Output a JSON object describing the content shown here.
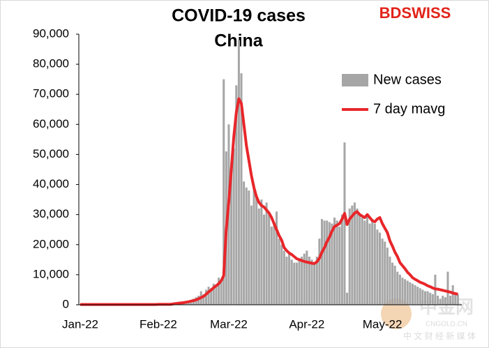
{
  "chart_data": {
    "type": "bar",
    "title": "COVID-19 cases",
    "subtitle": "China",
    "logo": "BDSWISS",
    "watermark": {
      "name": "中金网",
      "site": "CNGOLD.CN",
      "tagline": "中 文 财 经 新 媒 体"
    },
    "legend": "upper right",
    "categories": [
      "Jan-22",
      null,
      null,
      null,
      null,
      null,
      null,
      null,
      null,
      null,
      null,
      null,
      null,
      null,
      null,
      null,
      null,
      null,
      null,
      null,
      null,
      null,
      null,
      null,
      null,
      null,
      null,
      null,
      null,
      null,
      null,
      "Feb-22",
      null,
      null,
      null,
      null,
      null,
      null,
      null,
      null,
      null,
      null,
      null,
      null,
      null,
      null,
      null,
      null,
      null,
      null,
      null,
      null,
      null,
      null,
      null,
      null,
      null,
      null,
      null,
      "Mar-22",
      null,
      null,
      null,
      null,
      null,
      null,
      null,
      null,
      null,
      null,
      null,
      null,
      null,
      null,
      null,
      null,
      null,
      null,
      null,
      null,
      null,
      null,
      null,
      null,
      null,
      null,
      null,
      null,
      null,
      null,
      "Apr-22",
      null,
      null,
      null,
      null,
      null,
      null,
      null,
      null,
      null,
      null,
      null,
      null,
      null,
      null,
      null,
      null,
      null,
      null,
      null,
      null,
      null,
      null,
      null,
      null,
      null,
      null,
      null,
      null,
      null,
      "May-22",
      null,
      null,
      null,
      null,
      null,
      null,
      null,
      null,
      null,
      null,
      null,
      null,
      null,
      null,
      null,
      null,
      null,
      null,
      null,
      null,
      null,
      null,
      null,
      null,
      null,
      null,
      null,
      null,
      null,
      null
    ],
    "series": [
      {
        "name": "New cases",
        "type": "bar",
        "color": "#a6a6a6",
        "values": [
          150,
          120,
          180,
          200,
          150,
          130,
          160,
          170,
          140,
          200,
          180,
          150,
          160,
          200,
          220,
          190,
          170,
          150,
          160,
          180,
          200,
          210,
          190,
          170,
          160,
          180,
          200,
          220,
          210,
          190,
          200,
          150,
          200,
          200,
          250,
          300,
          250,
          300,
          400,
          500,
          600,
          700,
          900,
          1200,
          1500,
          2000,
          2500,
          3000,
          4500,
          3500,
          5000,
          6000,
          5500,
          7000,
          6500,
          9000,
          8500,
          75000,
          51000,
          60000,
          47000,
          52000,
          73000,
          88000,
          77000,
          41000,
          39000,
          38000,
          33000,
          40000,
          36000,
          32000,
          35000,
          30000,
          34000,
          30000,
          26000,
          27000,
          31000,
          22000,
          20000,
          18000,
          16000,
          17000,
          15000,
          14000,
          14000,
          15000,
          16000,
          17000,
          18000,
          16000,
          15000,
          14000,
          16000,
          22000,
          28500,
          28000,
          28000,
          27500,
          27000,
          29000,
          28000,
          26000,
          30000,
          54000,
          4000,
          32000,
          33000,
          34000,
          32000,
          30000,
          29000,
          28000,
          30000,
          27000,
          28000,
          27000,
          25000,
          24000,
          22000,
          21000,
          19000,
          16000,
          14000,
          13000,
          11000,
          10000,
          9000,
          8500,
          8000,
          7500,
          7000,
          6500,
          6000,
          5500,
          5000,
          4500,
          4500,
          4000,
          3500,
          10000,
          3000,
          2000,
          3000,
          2500,
          11000,
          3000,
          6500,
          4000,
          3500
        ]
      },
      {
        "name": "7 day mavg",
        "type": "line",
        "color": "#e8262a",
        "values": [
          100,
          100,
          100,
          100,
          100,
          100,
          100,
          100,
          100,
          100,
          100,
          100,
          100,
          100,
          100,
          100,
          100,
          100,
          100,
          100,
          100,
          100,
          100,
          100,
          100,
          100,
          100,
          100,
          100,
          100,
          100,
          150,
          150,
          150,
          150,
          150,
          150,
          300,
          400,
          500,
          600,
          700,
          850,
          1000,
          1200,
          1400,
          1600,
          2000,
          2400,
          2800,
          3500,
          4300,
          4900,
          5700,
          6300,
          7000,
          8000,
          9700,
          25000,
          34000,
          45000,
          56000,
          64000,
          68500,
          67000,
          60000,
          53000,
          48000,
          43000,
          39000,
          36000,
          34000,
          33000,
          32500,
          31500,
          30500,
          29000,
          27000,
          25000,
          23000,
          21500,
          19000,
          18000,
          17200,
          16700,
          16000,
          15300,
          15000,
          14700,
          14400,
          14200,
          14000,
          13800,
          13700,
          14300,
          15500,
          17500,
          19000,
          21000,
          22500,
          24500,
          26000,
          26500,
          27000,
          28500,
          30400,
          26700,
          28500,
          29500,
          30500,
          31000,
          30000,
          29500,
          29000,
          30000,
          29000,
          28000,
          27600,
          28500,
          29000,
          27000,
          25500,
          24000,
          21300,
          19500,
          17500,
          16000,
          14000,
          13000,
          12000,
          10800,
          10000,
          9000,
          8500,
          8000,
          7500,
          7200,
          6800,
          6300,
          6000,
          5600,
          5300,
          5200,
          5000,
          4800,
          4600,
          4400,
          4200,
          3900,
          3700,
          3500
        ]
      }
    ],
    "ylim": [
      0,
      90000
    ],
    "yticks": [
      0,
      {
        "value": 10000,
        "label": "10,000"
      },
      {
        "value": 20000,
        "label": "20,000"
      },
      {
        "value": 30000,
        "label": "30,000"
      },
      {
        "value": 40000,
        "label": "40,000"
      },
      {
        "value": 50000,
        "label": "50,000"
      },
      {
        "value": 60000,
        "label": "60,000"
      },
      {
        "value": 70000,
        "label": "70,000"
      },
      {
        "value": 80000,
        "label": "80,000"
      },
      {
        "value": 90000,
        "label": "90,000"
      }
    ],
    "grid": false
  }
}
